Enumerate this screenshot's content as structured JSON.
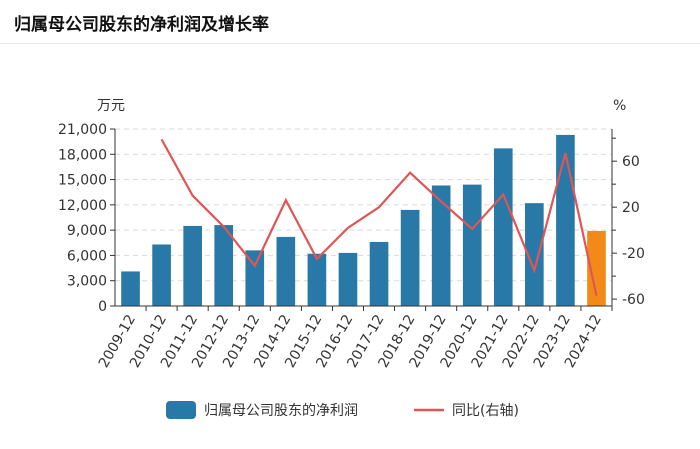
{
  "header": {
    "title": "归属母公司股东的净利润及增长率"
  },
  "chart_data": {
    "type": "bar",
    "categories": [
      "2009-12",
      "2010-12",
      "2011-12",
      "2012-12",
      "2013-12",
      "2014-12",
      "2015-12",
      "2016-12",
      "2017-12",
      "2018-12",
      "2019-12",
      "2020-12",
      "2021-12",
      "2022-12",
      "2023-12",
      "2024-12"
    ],
    "series": [
      {
        "name": "归属母公司股东的净利润",
        "type": "bar",
        "axis": "left",
        "values": [
          4100,
          7300,
          9500,
          9600,
          6600,
          8200,
          6200,
          6300,
          7600,
          11400,
          14300,
          14400,
          18700,
          12200,
          20300,
          8900
        ],
        "color": "#2878a8",
        "highlight_color": "#f28a1a",
        "highlight_index": 15
      },
      {
        "name": "同比(右轴)",
        "type": "line",
        "axis": "right",
        "values": [
          null,
          79,
          30,
          3,
          -31,
          26,
          -25,
          2,
          20,
          50,
          25,
          1,
          31,
          -35,
          67,
          -57
        ],
        "color": "#e05555"
      }
    ],
    "left_axis": {
      "unit": "万元",
      "min": 0,
      "max": 21000,
      "ticks": [
        0,
        3000,
        6000,
        9000,
        12000,
        15000,
        18000,
        21000
      ],
      "tick_labels": [
        "0",
        "3,000",
        "6,000",
        "9,000",
        "12,000",
        "15,000",
        "18,000",
        "21,000"
      ]
    },
    "right_axis": {
      "unit": "%",
      "min": -66,
      "max": 88,
      "ticks": [
        -60,
        -20,
        20,
        60
      ],
      "tick_labels": [
        "-60",
        "-20",
        "20",
        "60"
      ]
    },
    "grid": true,
    "legend": "bottom"
  }
}
